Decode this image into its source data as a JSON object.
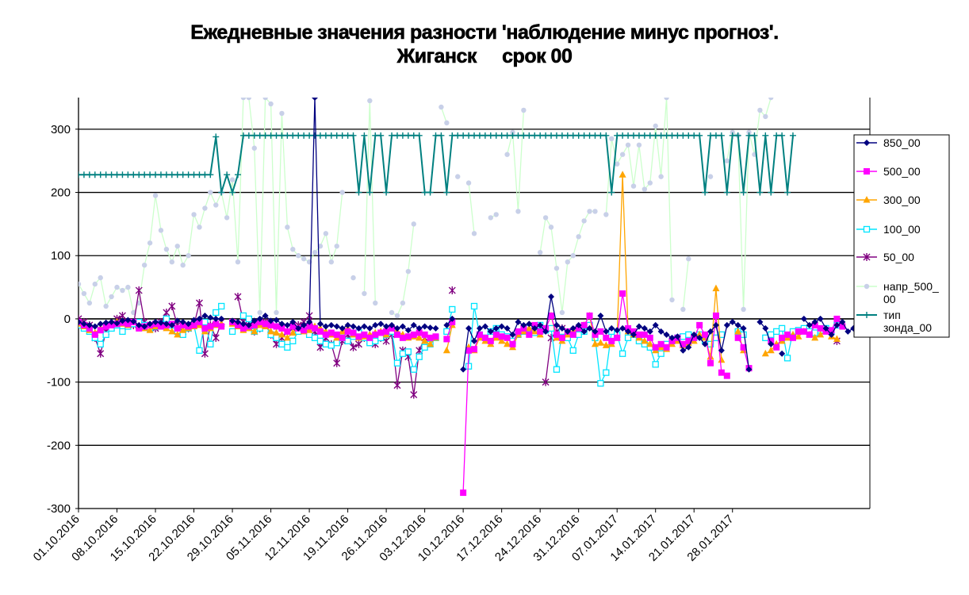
{
  "title": "Ежедневные значения разности 'наблюдение минус прогноз'.",
  "subtitle": "Жиганск     срок 00",
  "chart_data": {
    "type": "line",
    "title": "Ежедневные значения разности 'наблюдение минус прогноз'. Жиганск     срок 00",
    "xlabel": "",
    "ylabel": "",
    "ylim": [
      -300,
      350
    ],
    "yticks": [
      -300,
      -200,
      -100,
      0,
      100,
      200,
      300
    ],
    "gridlines": "horizontal",
    "legend_position": "right",
    "x_start": "01.10.2016",
    "x_end": "31.01.2017",
    "xtick_labels": [
      "01.10.2016",
      "08.10.2016",
      "15.10.2016",
      "22.10.2016",
      "29.10.2016",
      "05.11.2016",
      "12.11.2016",
      "19.11.2016",
      "26.11.2016",
      "03.12.2016",
      "10.12.2016",
      "17.12.2016",
      "24.12.2016",
      "31.12.2016",
      "07.01.2017",
      "14.01.2017",
      "21.01.2017",
      "28.01.2017"
    ],
    "series": [
      {
        "name": "850_00",
        "color": "#000080",
        "marker": "diamond",
        "line": true,
        "values": [
          -5,
          -8,
          -10,
          -12,
          -8,
          -6,
          -5,
          -7,
          -3,
          -2,
          -4,
          -10,
          -12,
          -8,
          -5,
          -6,
          -8,
          -10,
          -3,
          -5,
          -8,
          -2,
          0,
          5,
          2,
          0,
          0,
          null,
          -3,
          -5,
          -8,
          -10,
          -3,
          0,
          5,
          -3,
          -2,
          -8,
          -10,
          -5,
          -15,
          -10,
          -5,
          350,
          -8,
          -12,
          -10,
          -12,
          -15,
          -10,
          -12,
          -15,
          -12,
          -15,
          -10,
          -8,
          -12,
          -10,
          -15,
          -12,
          -18,
          -10,
          -15,
          -12,
          -14,
          -15,
          null,
          -10,
          0,
          null,
          -80,
          -15,
          -35,
          -15,
          -12,
          -20,
          -15,
          -12,
          -15,
          -25,
          -5,
          -10,
          -8,
          -15,
          -10,
          -20,
          35,
          -10,
          -15,
          -20,
          -15,
          -10,
          -20,
          -15,
          -20,
          5,
          -20,
          -15,
          -18,
          -15,
          -20,
          -25,
          -12,
          -15,
          -20,
          -10,
          -20,
          -25,
          -30,
          -28,
          -50,
          -45,
          -25,
          -30,
          -40,
          -20,
          -10,
          -50,
          -10,
          -5,
          -10,
          -15,
          -80,
          null,
          -5,
          -15,
          -40,
          null,
          -55,
          null,
          null,
          null,
          0,
          -10,
          -5,
          0,
          -15,
          -25,
          -10,
          -5,
          -20,
          -15,
          -10,
          -5,
          -15
        ]
      },
      {
        "name": "500_00",
        "color": "#ff00ff",
        "marker": "square",
        "line": true,
        "values": [
          -5,
          -10,
          -15,
          -25,
          -18,
          -12,
          -10,
          -8,
          -6,
          -8,
          -5,
          -15,
          -12,
          -10,
          -8,
          -12,
          -10,
          -8,
          -15,
          -10,
          -12,
          -10,
          -5,
          -15,
          -12,
          -8,
          -12,
          null,
          -5,
          -10,
          -15,
          -12,
          -10,
          -5,
          -8,
          -10,
          -12,
          -15,
          -20,
          -12,
          -15,
          -18,
          -12,
          -15,
          -20,
          -25,
          -22,
          -25,
          -30,
          -20,
          -22,
          -28,
          -25,
          -30,
          -25,
          -22,
          -20,
          -15,
          -25,
          -30,
          -28,
          -25,
          -22,
          -25,
          -30,
          -28,
          null,
          -32,
          -5,
          null,
          -275,
          -50,
          -48,
          -25,
          -30,
          -35,
          -25,
          -28,
          -30,
          -40,
          -20,
          -15,
          -25,
          -10,
          -20,
          -15,
          5,
          -25,
          -30,
          -20,
          -25,
          -15,
          -10,
          5,
          -25,
          -20,
          -30,
          -35,
          -30,
          40,
          -15,
          -20,
          -25,
          -25,
          -30,
          -45,
          -40,
          -45,
          -35,
          -30,
          -40,
          -35,
          -30,
          -10,
          -25,
          -70,
          5,
          -85,
          -90,
          null,
          -30,
          -45,
          -78,
          null,
          null,
          null,
          -35,
          -45,
          -30,
          -25,
          -30,
          -20,
          -20,
          -25,
          -10,
          -15,
          -20,
          -18,
          0,
          -12
        ]
      },
      {
        "name": "300_00",
        "color": "#ffa500",
        "marker": "triangle",
        "line": true,
        "values": [
          -8,
          -12,
          -18,
          -22,
          -15,
          -10,
          -8,
          -5,
          -8,
          -10,
          -5,
          -12,
          -15,
          -18,
          -12,
          -10,
          -15,
          -20,
          -25,
          -18,
          -15,
          -12,
          -10,
          -20,
          -15,
          -10,
          -8,
          null,
          -8,
          -12,
          -18,
          -15,
          -20,
          -10,
          -12,
          -20,
          -22,
          -25,
          -30,
          -22,
          -15,
          -20,
          -18,
          -12,
          -15,
          -20,
          -25,
          -30,
          -20,
          -15,
          -25,
          -30,
          -28,
          -25,
          -22,
          -20,
          -25,
          -15,
          -20,
          -25,
          -30,
          -28,
          -30,
          -35,
          -40,
          -30,
          null,
          -50,
          -10,
          null,
          null,
          -45,
          -50,
          -30,
          -35,
          -40,
          -30,
          -35,
          -40,
          -45,
          -25,
          -20,
          -15,
          -20,
          -25,
          -15,
          5,
          -30,
          -35,
          -25,
          -20,
          -15,
          -10,
          5,
          -40,
          -38,
          -42,
          -40,
          -30,
          228,
          -20,
          -25,
          -30,
          -35,
          -40,
          -50,
          -45,
          -48,
          -40,
          -35,
          -42,
          -38,
          -35,
          -25,
          -30,
          -60,
          48,
          -65,
          null,
          null,
          -20,
          -50,
          null,
          null,
          null,
          -55,
          -50,
          -40,
          -35,
          -30,
          -25,
          -28,
          -20,
          -25,
          -30,
          -25,
          -20,
          -28,
          -32
        ]
      },
      {
        "name": "100_00",
        "color": "#00e5ff",
        "marker": "square-open",
        "line": true,
        "values": [
          -10,
          -15,
          -20,
          -30,
          -40,
          -25,
          -15,
          -10,
          -20,
          -12,
          -8,
          -5,
          -10,
          -15,
          -12,
          -8,
          0,
          -10,
          -20,
          -25,
          -15,
          -10,
          -50,
          -5,
          -40,
          10,
          20,
          null,
          -20,
          null,
          5,
          0,
          -20,
          -15,
          -10,
          -25,
          -30,
          -40,
          -45,
          -35,
          -20,
          -15,
          -25,
          -30,
          -35,
          -40,
          -42,
          -38,
          -30,
          -35,
          -28,
          -22,
          -30,
          -38,
          -35,
          -30,
          -25,
          -20,
          -70,
          -55,
          -52,
          -80,
          -60,
          -45,
          -40,
          -30,
          null,
          -20,
          15,
          null,
          null,
          -75,
          20,
          -25,
          -30,
          -20,
          -15,
          -25,
          -28,
          -35,
          -25,
          -20,
          -15,
          -22,
          -10,
          -18,
          -15,
          -80,
          -20,
          -30,
          -50,
          -25,
          -20,
          -10,
          -30,
          -102,
          -85,
          -20,
          -25,
          -55,
          -30,
          -25,
          -35,
          -40,
          -45,
          -72,
          -55,
          -40,
          -35,
          -30,
          -28,
          -25,
          -30,
          -25,
          -35,
          -40,
          -30,
          -25,
          null,
          null,
          -20,
          -25,
          null,
          null,
          null,
          -30,
          -25,
          -20,
          -15,
          -62,
          -20,
          -18,
          -15,
          -20,
          -22,
          -18,
          -15,
          -20,
          -10
        ]
      },
      {
        "name": "50_00",
        "color": "#800080",
        "marker": "star",
        "line": true,
        "values": [
          0,
          -5,
          -10,
          -30,
          -55,
          -20,
          -10,
          0,
          5,
          -5,
          -10,
          45,
          -5,
          -10,
          -15,
          -5,
          10,
          20,
          -10,
          -20,
          -15,
          -10,
          25,
          -55,
          -10,
          -30,
          -5,
          null,
          null,
          35,
          -5,
          -10,
          -20,
          -15,
          -5,
          -25,
          -40,
          -30,
          -20,
          -15,
          -10,
          -5,
          5,
          -20,
          -45,
          -30,
          -40,
          -70,
          -35,
          -25,
          -45,
          -40,
          -30,
          -35,
          -40,
          -30,
          -35,
          -25,
          -105,
          -50,
          -60,
          -120,
          -50,
          -30,
          null,
          null,
          null,
          null,
          45,
          null,
          null,
          null,
          null,
          null,
          null,
          null,
          null,
          null,
          null,
          null,
          null,
          null,
          null,
          null,
          null,
          -100,
          -30,
          -20,
          -15,
          null,
          null,
          null,
          null,
          null,
          null,
          null,
          null,
          null,
          null,
          null,
          null,
          null,
          null,
          null,
          null,
          null,
          null,
          null,
          null,
          null,
          null,
          null,
          null,
          null,
          null,
          null,
          null,
          null,
          null,
          null,
          null,
          null,
          null,
          null,
          null,
          null,
          null,
          null,
          null,
          null,
          null,
          null,
          null,
          null,
          null,
          null,
          null,
          null,
          -35
        ]
      },
      {
        "name": "напр_500_00",
        "color": "#ccffcc",
        "pointColor": "#c8d0e8",
        "marker": "circle",
        "line": true,
        "values": [
          55,
          40,
          25,
          55,
          65,
          20,
          35,
          50,
          45,
          50,
          10,
          25,
          85,
          120,
          195,
          140,
          110,
          90,
          115,
          85,
          100,
          165,
          145,
          175,
          200,
          180,
          200,
          160,
          220,
          90,
          350,
          350,
          270,
          10,
          350,
          340,
          10,
          325,
          145,
          110,
          100,
          95,
          90,
          105,
          115,
          135,
          90,
          115,
          200,
          null,
          65,
          null,
          40,
          345,
          25,
          null,
          null,
          10,
          5,
          25,
          75,
          150,
          null,
          null,
          null,
          null,
          335,
          310,
          null,
          225,
          null,
          215,
          135,
          null,
          null,
          160,
          165,
          null,
          260,
          295,
          170,
          330,
          null,
          null,
          105,
          160,
          145,
          80,
          10,
          90,
          100,
          130,
          155,
          170,
          170,
          null,
          165,
          285,
          245,
          260,
          275,
          210,
          275,
          205,
          215,
          305,
          225,
          350,
          30,
          null,
          15,
          95,
          null,
          null,
          null,
          225,
          null,
          null,
          250,
          295,
          290,
          15,
          295,
          260,
          330,
          320,
          350
        ]
      },
      {
        "name": "тип зонда_00",
        "color": "#008080",
        "marker": "plus",
        "line": true,
        "values": [
          228,
          228,
          228,
          228,
          228,
          228,
          228,
          228,
          228,
          228,
          228,
          228,
          228,
          228,
          228,
          228,
          228,
          228,
          228,
          228,
          228,
          228,
          228,
          228,
          228,
          288,
          200,
          228,
          200,
          228,
          290,
          290,
          290,
          290,
          290,
          290,
          290,
          290,
          290,
          290,
          290,
          290,
          290,
          290,
          290,
          290,
          290,
          290,
          290,
          290,
          290,
          200,
          290,
          200,
          290,
          290,
          200,
          290,
          290,
          290,
          290,
          290,
          290,
          200,
          200,
          290,
          290,
          200,
          290,
          290,
          290,
          290,
          290,
          290,
          290,
          290,
          290,
          290,
          290,
          290,
          290,
          290,
          290,
          290,
          290,
          290,
          290,
          290,
          290,
          290,
          290,
          290,
          290,
          290,
          290,
          290,
          290,
          200,
          290,
          290,
          290,
          290,
          290,
          290,
          290,
          290,
          290,
          290,
          290,
          290,
          290,
          290,
          290,
          290,
          200,
          290,
          290,
          290,
          200,
          290,
          290,
          200,
          290,
          290,
          200,
          290,
          200,
          290,
          290,
          200,
          290
        ]
      }
    ]
  }
}
